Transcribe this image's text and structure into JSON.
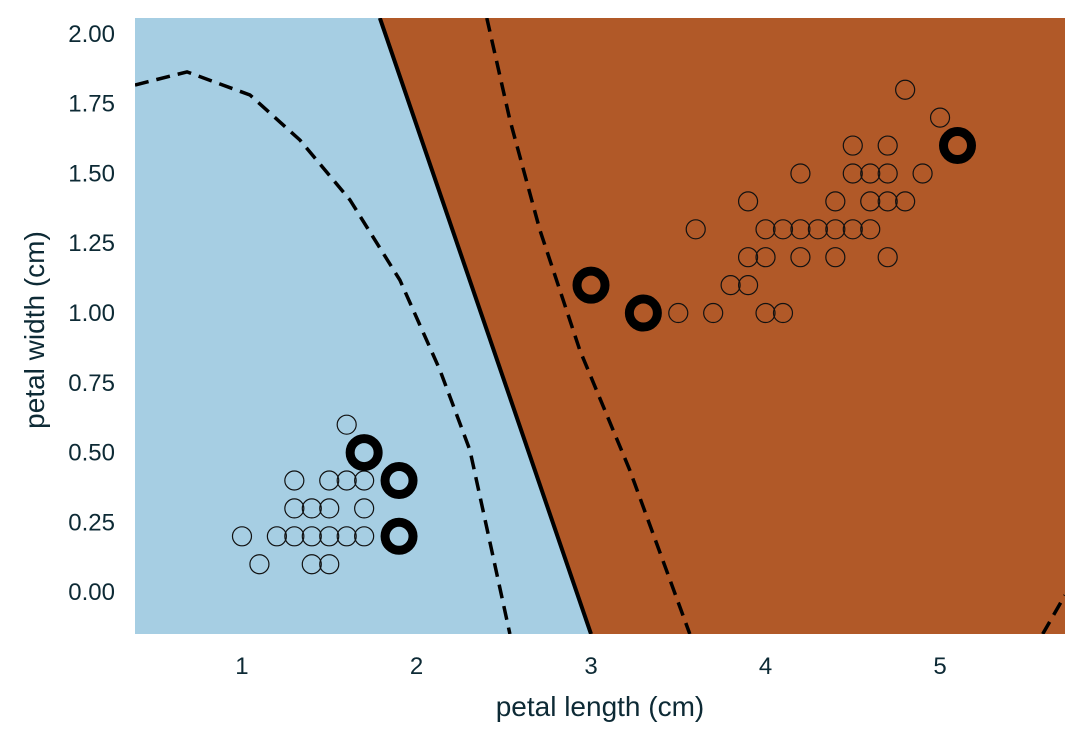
{
  "chart_data": {
    "type": "scatter",
    "title": "",
    "xlabel": "petal length (cm)",
    "ylabel": "petal width (cm)",
    "xlim": [
      0.387,
      5.716
    ],
    "ylim": [
      -0.15,
      2.057
    ],
    "grid": false,
    "xticks": [
      1,
      2,
      3,
      4,
      5
    ],
    "xtick_labels": [
      "1",
      "2",
      "3",
      "4",
      "5"
    ],
    "yticks": [
      0,
      0.25,
      0.5,
      0.75,
      1.0,
      1.25,
      1.5,
      1.75,
      2.0
    ],
    "ytick_labels": [
      "0.00",
      "0.25",
      "0.50",
      "0.75",
      "1.00",
      "1.25",
      "1.50",
      "1.75",
      "2.00"
    ],
    "colors": {
      "region_class0": "#a6cee3",
      "region_class1": "#b15928",
      "marker_edge": "#000000"
    },
    "decision_boundary": [
      [
        1.79,
        2.057
      ],
      [
        3.0,
        -0.15
      ]
    ],
    "margin_lines": [
      [
        [
          0.387,
          1.817
        ],
        [
          0.685,
          1.864
        ],
        [
          1.046,
          1.781
        ],
        [
          1.332,
          1.62
        ],
        [
          1.619,
          1.405
        ],
        [
          1.905,
          1.118
        ],
        [
          2.134,
          0.796
        ],
        [
          2.306,
          0.509
        ],
        [
          2.535,
          -0.15
        ]
      ],
      [
        [
          2.403,
          2.057
        ],
        [
          2.535,
          1.692
        ],
        [
          2.707,
          1.297
        ],
        [
          2.936,
          0.867
        ],
        [
          3.222,
          0.437
        ],
        [
          3.566,
          -0.15
        ]
      ],
      [
        [
          5.588,
          -0.15
        ],
        [
          5.716,
          -0.011
        ]
      ]
    ],
    "points": [
      [
        1.0,
        0.2
      ],
      [
        1.1,
        0.1
      ],
      [
        1.2,
        0.2
      ],
      [
        1.3,
        0.2
      ],
      [
        1.3,
        0.3
      ],
      [
        1.3,
        0.4
      ],
      [
        1.4,
        0.2
      ],
      [
        1.4,
        0.3
      ],
      [
        1.4,
        0.1
      ],
      [
        1.5,
        0.2
      ],
      [
        1.5,
        0.3
      ],
      [
        1.5,
        0.4
      ],
      [
        1.5,
        0.1
      ],
      [
        1.6,
        0.2
      ],
      [
        1.6,
        0.4
      ],
      [
        1.6,
        0.6
      ],
      [
        1.7,
        0.2
      ],
      [
        1.7,
        0.3
      ],
      [
        1.7,
        0.4
      ],
      [
        3.5,
        1.0
      ],
      [
        3.7,
        1.0
      ],
      [
        3.6,
        1.3
      ],
      [
        3.8,
        1.1
      ],
      [
        3.9,
        1.1
      ],
      [
        3.9,
        1.2
      ],
      [
        3.9,
        1.4
      ],
      [
        4.0,
        1.3
      ],
      [
        4.0,
        1.2
      ],
      [
        4.0,
        1.0
      ],
      [
        4.1,
        1.0
      ],
      [
        4.1,
        1.3
      ],
      [
        4.2,
        1.3
      ],
      [
        4.2,
        1.2
      ],
      [
        4.2,
        1.5
      ],
      [
        4.3,
        1.3
      ],
      [
        4.4,
        1.3
      ],
      [
        4.4,
        1.4
      ],
      [
        4.4,
        1.2
      ],
      [
        4.5,
        1.3
      ],
      [
        4.5,
        1.5
      ],
      [
        4.5,
        1.6
      ],
      [
        4.6,
        1.5
      ],
      [
        4.6,
        1.4
      ],
      [
        4.6,
        1.3
      ],
      [
        4.7,
        1.6
      ],
      [
        4.7,
        1.5
      ],
      [
        4.7,
        1.4
      ],
      [
        4.7,
        1.2
      ],
      [
        4.8,
        1.8
      ],
      [
        4.8,
        1.4
      ],
      [
        4.9,
        1.5
      ],
      [
        5.0,
        1.7
      ]
    ],
    "support_vectors": [
      [
        1.7,
        0.5
      ],
      [
        1.9,
        0.4
      ],
      [
        1.9,
        0.2
      ],
      [
        3.0,
        1.1
      ],
      [
        3.3,
        1.0
      ],
      [
        5.1,
        1.6
      ]
    ]
  }
}
